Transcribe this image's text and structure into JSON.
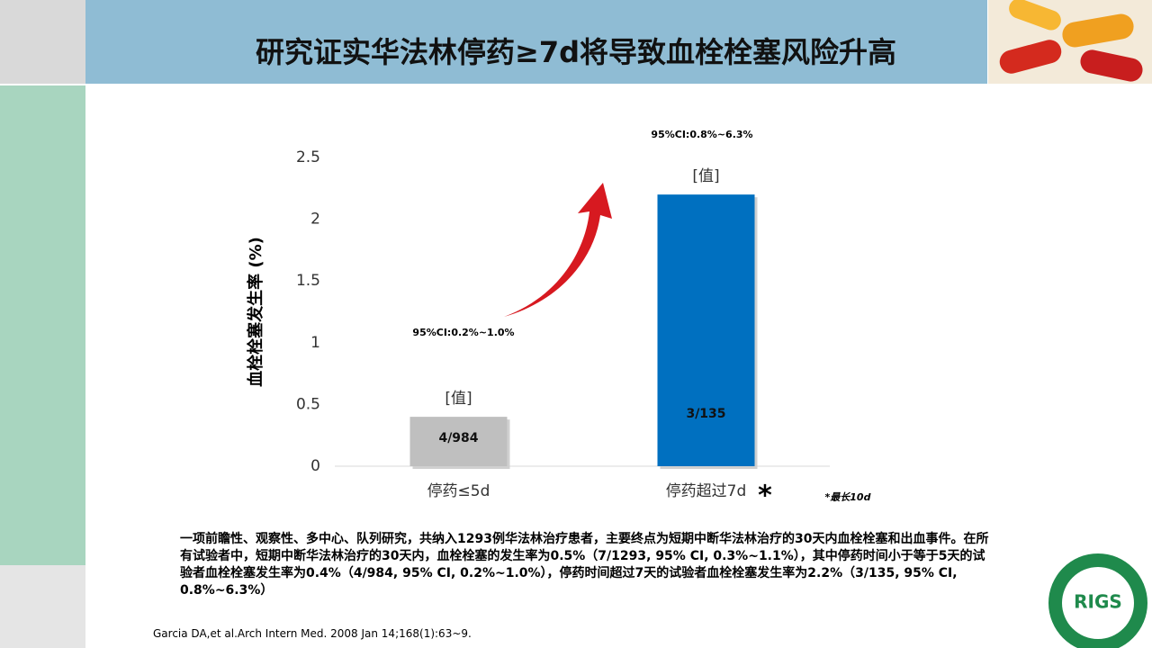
{
  "header": {
    "title": "研究证实华法林停药≥7d将导致血栓栓塞风险升高"
  },
  "chart_data": {
    "type": "bar",
    "y_axis_label": "血栓栓塞发生率 (%)",
    "categories": [
      "停药≤5d",
      "停药超过7d"
    ],
    "category_marker": "*",
    "values": [
      0.4,
      2.2
    ],
    "colors": [
      "#bfbfbf",
      "#0070c0"
    ],
    "placeholder_labels": [
      "[值]",
      "[值]"
    ],
    "inner_labels": [
      "4/984",
      "3/135"
    ],
    "ci_labels": [
      "95%CI:0.2%~1.0%",
      "95%CI:0.8%~6.3%"
    ],
    "footnote": "*最长10d",
    "ylim": [
      0,
      2.5
    ],
    "yticks": [
      0,
      0.5,
      1,
      1.5,
      2,
      2.5
    ]
  },
  "body": {
    "paragraph": "一项前瞻性、观察性、多中心、队列研究，共纳入1293例华法林治疗患者，主要终点为短期中断华法林治疗的30天内血栓栓塞和出血事件。在所有试验者中，短期中断华法林治疗的30天内，血栓栓塞的发生率为0.5%（7/1293, 95% CI, 0.3%~1.1%），其中停药时间小于等于5天的试验者血栓栓塞发生率为0.4%（4/984, 95% CI, 0.2%~1.0%），停药时间超过7天的试验者血栓栓塞发生率为2.2%（3/135, 95% CI, 0.8%~6.3%）",
    "citation": "Garcia DA,et al.Arch Intern Med. 2008 Jan 14;168(1):63~9."
  },
  "logo": {
    "text": "RIGS"
  }
}
